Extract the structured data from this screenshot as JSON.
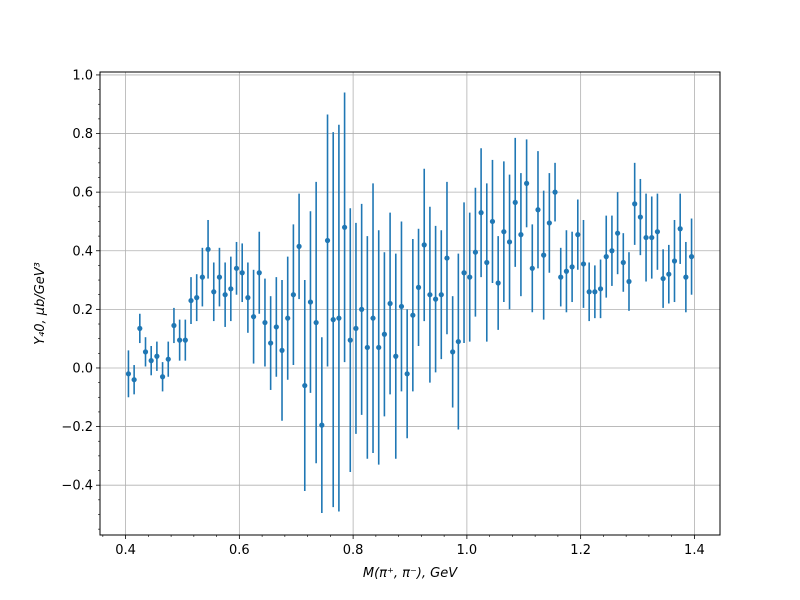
{
  "chart_data": {
    "type": "scatter",
    "title": "",
    "xlabel": "M(π⁺, π⁻), GeV",
    "ylabel": "Y₄0, μb/GeV³",
    "xlim": [
      0.355,
      1.445
    ],
    "ylim": [
      -0.57,
      1.01
    ],
    "xticks": [
      0.4,
      0.6,
      0.8,
      1.0,
      1.2,
      1.4
    ],
    "xtick_labels": [
      "0.4",
      "0.6",
      "0.8",
      "1.0",
      "1.2",
      "1.4"
    ],
    "yticks": [
      -0.4,
      -0.2,
      0.0,
      0.2,
      0.4,
      0.6,
      0.8,
      1.0
    ],
    "ytick_labels": [
      "−0.4",
      "−0.2",
      "0.0",
      "0.2",
      "0.4",
      "0.6",
      "0.8",
      "1.0"
    ],
    "grid": true,
    "color": "#1f77b4",
    "series": [
      {
        "x": [
          0.405,
          0.415,
          0.425,
          0.435,
          0.445,
          0.455,
          0.465,
          0.475,
          0.485,
          0.495,
          0.505,
          0.515,
          0.525,
          0.535,
          0.545,
          0.555,
          0.565,
          0.575,
          0.585,
          0.595,
          0.605,
          0.615,
          0.625,
          0.635,
          0.645,
          0.655,
          0.665,
          0.675,
          0.685,
          0.695,
          0.705,
          0.715,
          0.725,
          0.735,
          0.745,
          0.755,
          0.765,
          0.775,
          0.785,
          0.795,
          0.805,
          0.815,
          0.825,
          0.835,
          0.845,
          0.855,
          0.865,
          0.875,
          0.885,
          0.895,
          0.905,
          0.915,
          0.925,
          0.935,
          0.945,
          0.955,
          0.965,
          0.975,
          0.985,
          0.995,
          1.005,
          1.015,
          1.025,
          1.035,
          1.045,
          1.055,
          1.065,
          1.075,
          1.085,
          1.095,
          1.105,
          1.115,
          1.125,
          1.135,
          1.145,
          1.155,
          1.165,
          1.175,
          1.185,
          1.195,
          1.205,
          1.215,
          1.225,
          1.235,
          1.245,
          1.255,
          1.265,
          1.275,
          1.285,
          1.295,
          1.305,
          1.315,
          1.325,
          1.335,
          1.345,
          1.355,
          1.365,
          1.375,
          1.385,
          1.395
        ],
        "y": [
          -0.02,
          -0.04,
          0.135,
          0.055,
          0.025,
          0.04,
          -0.03,
          0.03,
          0.145,
          0.095,
          0.095,
          0.23,
          0.24,
          0.31,
          0.405,
          0.26,
          0.31,
          0.25,
          0.27,
          0.34,
          0.325,
          0.24,
          0.175,
          0.325,
          0.155,
          0.085,
          0.14,
          0.06,
          0.17,
          0.25,
          0.415,
          -0.06,
          0.225,
          0.155,
          -0.195,
          0.435,
          0.165,
          0.17,
          0.48,
          0.095,
          0.135,
          0.2,
          0.07,
          0.17,
          0.07,
          0.115,
          0.22,
          0.04,
          0.21,
          -0.02,
          0.18,
          0.275,
          0.42,
          0.25,
          0.235,
          0.25,
          0.375,
          0.055,
          0.09,
          0.325,
          0.31,
          0.395,
          0.53,
          0.36,
          0.5,
          0.29,
          0.465,
          0.43,
          0.565,
          0.455,
          0.63,
          0.34,
          0.54,
          0.385,
          0.495,
          0.6,
          0.31,
          0.33,
          0.345,
          0.455,
          0.355,
          0.26,
          0.26,
          0.27,
          0.38,
          0.4,
          0.46,
          0.36,
          0.295,
          0.56,
          0.515,
          0.445,
          0.445,
          0.465,
          0.305,
          0.32,
          0.365,
          0.475,
          0.31,
          0.38
        ],
        "err": [
          0.08,
          0.05,
          0.05,
          0.05,
          0.05,
          0.05,
          0.05,
          0.06,
          0.06,
          0.07,
          0.07,
          0.08,
          0.08,
          0.1,
          0.1,
          0.1,
          0.1,
          0.11,
          0.11,
          0.09,
          0.1,
          0.12,
          0.16,
          0.14,
          0.15,
          0.16,
          0.17,
          0.24,
          0.21,
          0.24,
          0.18,
          0.36,
          0.31,
          0.48,
          0.3,
          0.43,
          0.64,
          0.66,
          0.46,
          0.45,
          0.36,
          0.36,
          0.38,
          0.46,
          0.4,
          0.28,
          0.31,
          0.35,
          0.29,
          0.22,
          0.26,
          0.2,
          0.26,
          0.3,
          0.25,
          0.22,
          0.26,
          0.19,
          0.3,
          0.24,
          0.22,
          0.22,
          0.22,
          0.27,
          0.21,
          0.16,
          0.24,
          0.23,
          0.22,
          0.21,
          0.15,
          0.15,
          0.2,
          0.22,
          0.17,
          0.1,
          0.1,
          0.14,
          0.12,
          0.12,
          0.15,
          0.1,
          0.09,
          0.1,
          0.14,
          0.12,
          0.14,
          0.1,
          0.1,
          0.14,
          0.13,
          0.15,
          0.14,
          0.13,
          0.1,
          0.1,
          0.14,
          0.12,
          0.12,
          0.13
        ]
      }
    ]
  }
}
